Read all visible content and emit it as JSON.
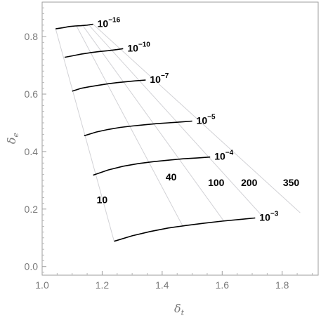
{
  "chart_data": {
    "type": "line",
    "xlabel": "δ_t",
    "ylabel": "δ_e",
    "xlabel_main": "δ",
    "xlabel_sub": "t",
    "ylabel_main": "δ",
    "ylabel_sub": "e",
    "xlim": [
      1.0,
      1.92
    ],
    "ylim": [
      -0.03,
      0.92
    ],
    "xticks": [
      1.0,
      1.2,
      1.4,
      1.6,
      1.8
    ],
    "xtick_labels": [
      "1.0",
      "1.2",
      "1.4",
      "1.6",
      "1.8"
    ],
    "yticks": [
      0.0,
      0.2,
      0.4,
      0.6,
      0.8
    ],
    "ytick_labels": [
      "0.0",
      "0.2",
      "0.4",
      "0.6",
      "0.8"
    ],
    "grid": false,
    "series": [
      {
        "label": "10",
        "base": "10",
        "exp": "-16",
        "x": [
          1.045,
          1.07,
          1.09,
          1.11,
          1.13,
          1.15,
          1.17
        ],
        "y": [
          0.827,
          0.831,
          0.835,
          0.837,
          0.838,
          0.84,
          0.843
        ]
      },
      {
        "label": "10",
        "base": "10",
        "exp": "-10",
        "x": [
          1.075,
          1.1,
          1.13,
          1.16,
          1.19,
          1.22,
          1.25,
          1.27
        ],
        "y": [
          0.728,
          0.733,
          0.739,
          0.744,
          0.748,
          0.751,
          0.755,
          0.758
        ]
      },
      {
        "label": "10",
        "base": "10",
        "exp": "-7",
        "x": [
          1.1,
          1.13,
          1.16,
          1.19,
          1.22,
          1.25,
          1.28,
          1.31,
          1.345
        ],
        "y": [
          0.61,
          0.62,
          0.626,
          0.631,
          0.636,
          0.64,
          0.643,
          0.646,
          0.649
        ]
      },
      {
        "label": "10",
        "base": "10",
        "exp": "-5",
        "x": [
          1.14,
          1.18,
          1.22,
          1.26,
          1.3,
          1.34,
          1.38,
          1.42,
          1.46,
          1.5
        ],
        "y": [
          0.455,
          0.468,
          0.477,
          0.484,
          0.489,
          0.493,
          0.497,
          0.5,
          0.503,
          0.506
        ]
      },
      {
        "label": "10",
        "base": "10",
        "exp": "-4",
        "x": [
          1.17,
          1.22,
          1.27,
          1.32,
          1.37,
          1.42,
          1.47,
          1.52,
          1.56
        ],
        "y": [
          0.318,
          0.336,
          0.349,
          0.358,
          0.365,
          0.37,
          0.375,
          0.378,
          0.381
        ]
      },
      {
        "label": "10",
        "base": "10",
        "exp": "-3",
        "x": [
          1.24,
          1.3,
          1.36,
          1.42,
          1.48,
          1.54,
          1.6,
          1.66,
          1.71
        ],
        "y": [
          0.088,
          0.107,
          0.122,
          0.134,
          0.143,
          0.151,
          0.158,
          0.164,
          0.169
        ]
      }
    ],
    "contours": [
      {
        "label": "10",
        "x": [
          1.045,
          1.24
        ],
        "y": [
          0.827,
          0.088
        ]
      },
      {
        "label": "40",
        "x": [
          1.115,
          1.47
        ],
        "y": [
          0.836,
          0.138
        ]
      },
      {
        "label": "100",
        "x": [
          1.135,
          1.605
        ],
        "y": [
          0.839,
          0.159
        ]
      },
      {
        "label": "200",
        "x": [
          1.155,
          1.735
        ],
        "y": [
          0.841,
          0.174
        ]
      },
      {
        "label": "350",
        "x": [
          1.17,
          1.86
        ],
        "y": [
          0.843,
          0.187
        ]
      }
    ]
  }
}
